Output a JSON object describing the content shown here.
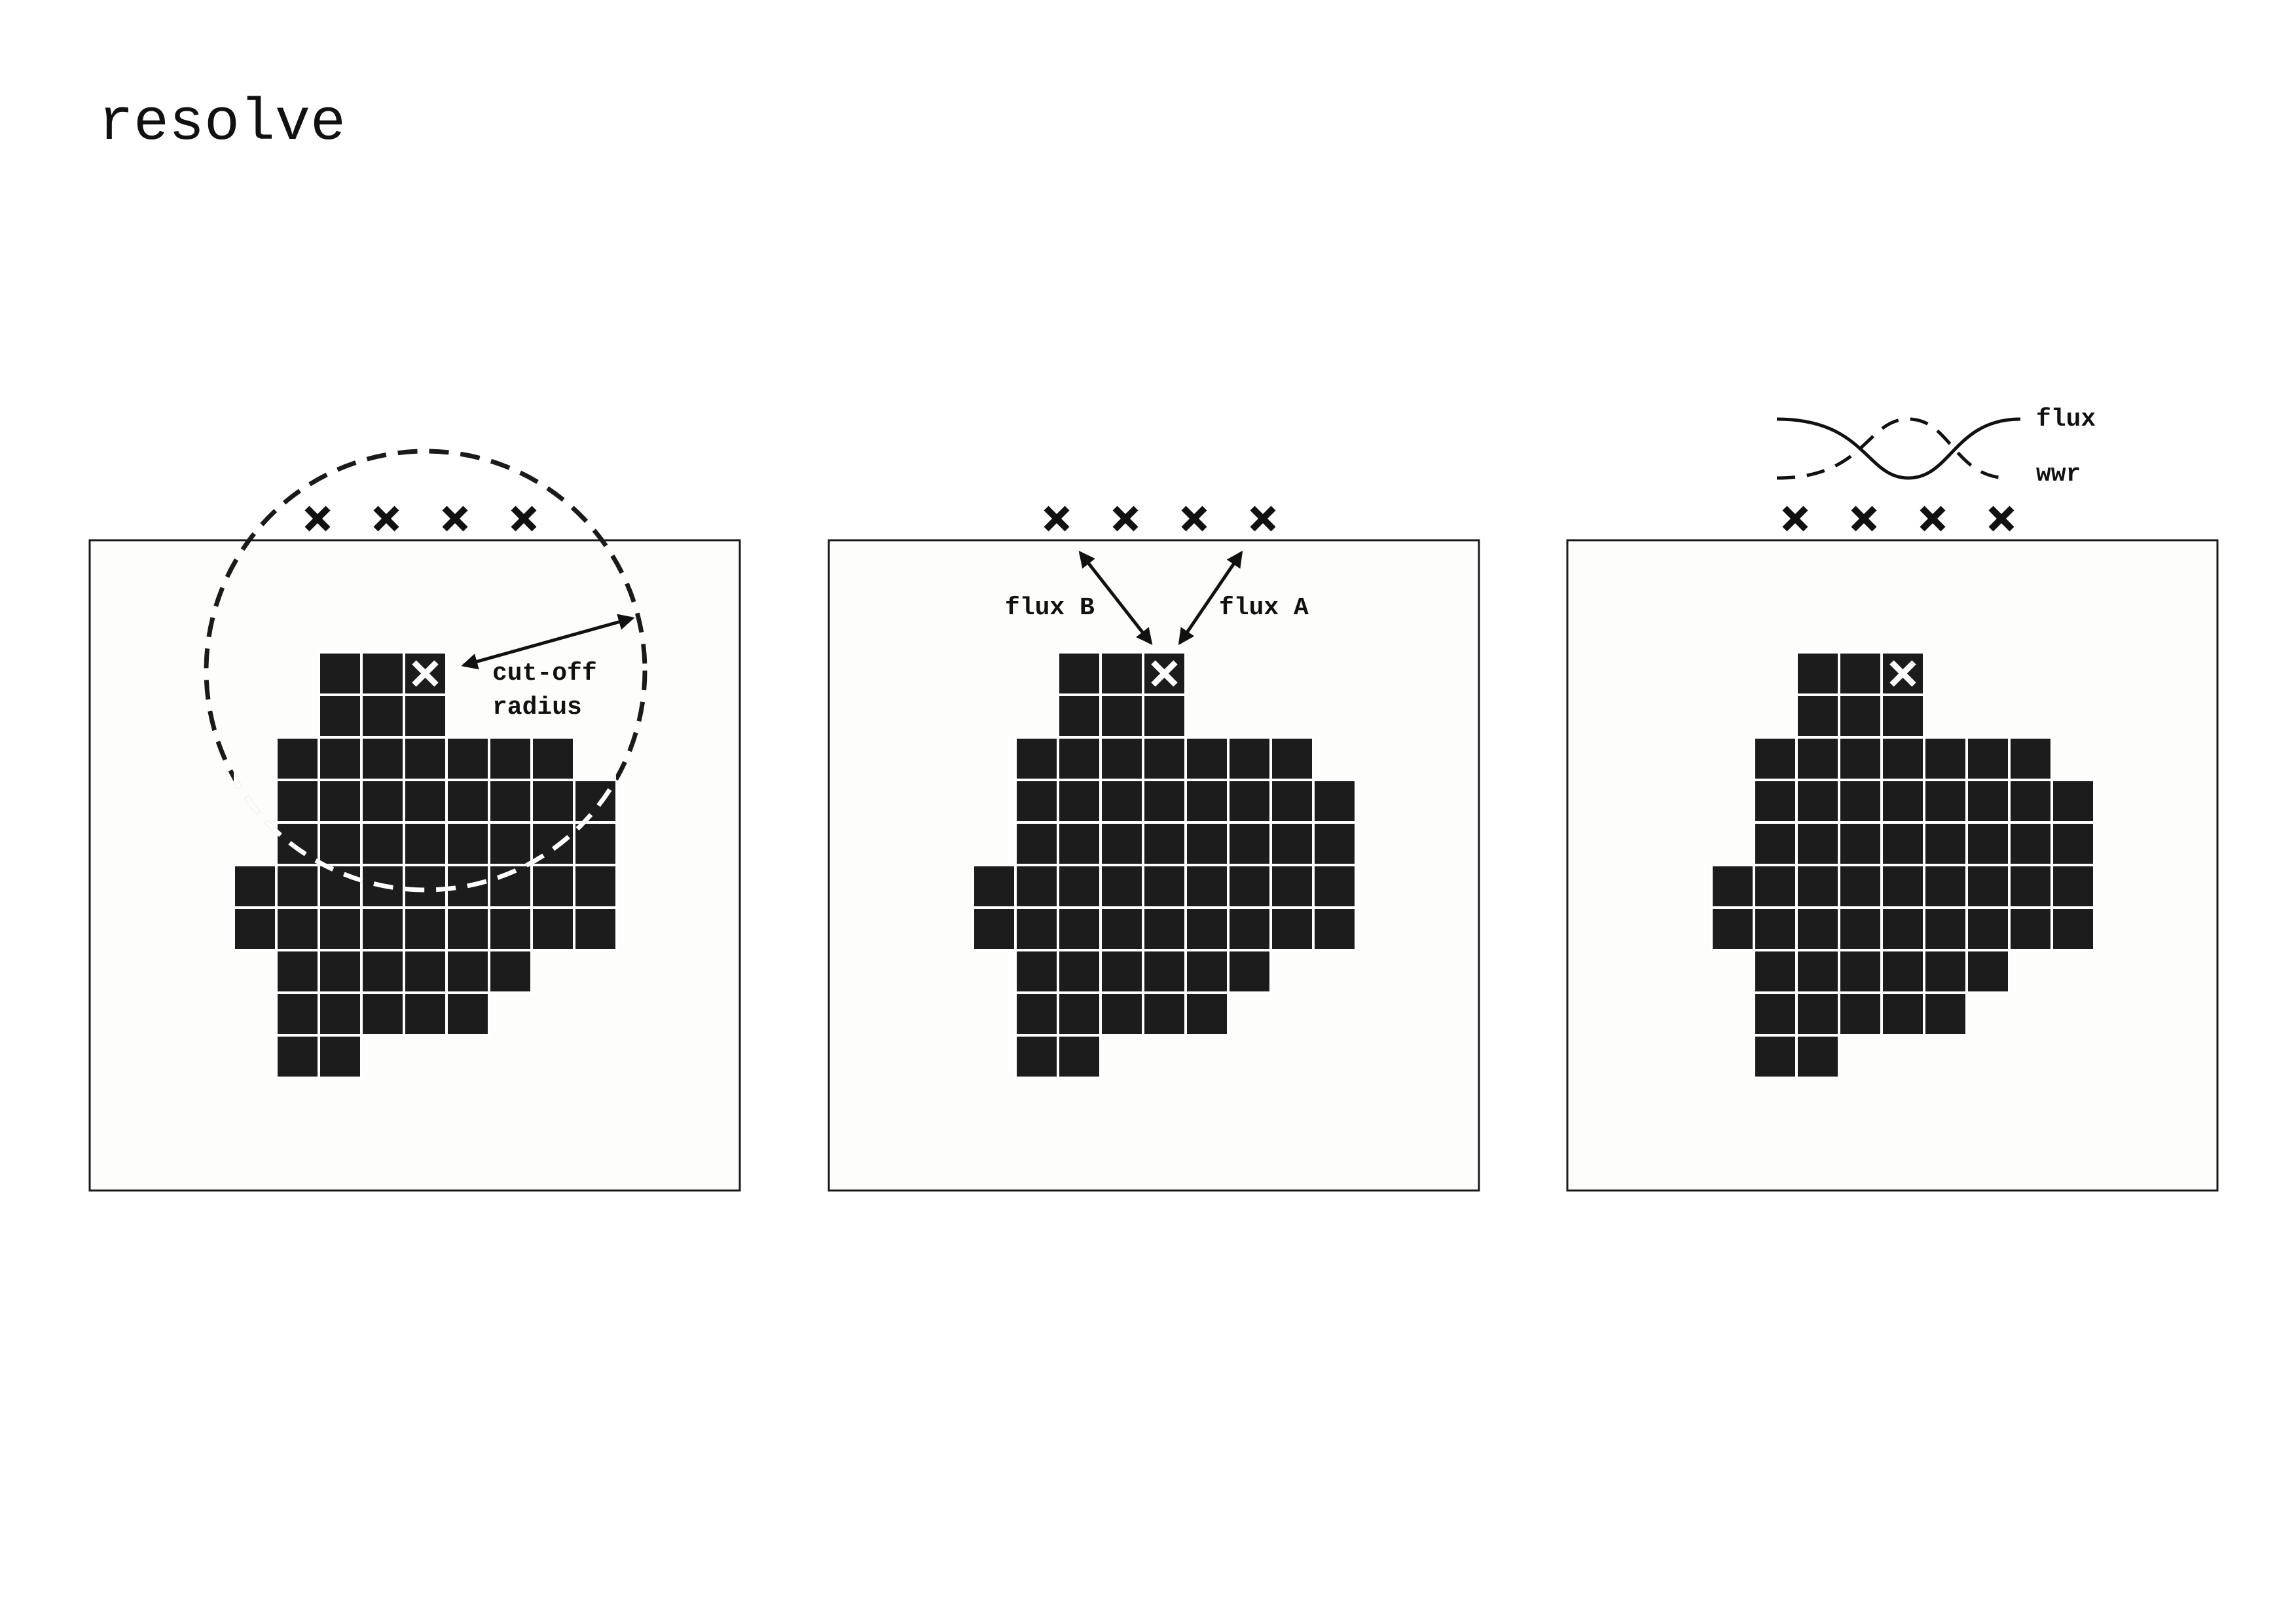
{
  "page": {
    "title": "resolve"
  },
  "colors": {
    "background": "#ffffff",
    "ink": "#1c1c1c",
    "grid_line": "#ffffff",
    "panel_fill": "#fdfdfb"
  },
  "icons": {
    "sensor": "cross-mark-icon",
    "selected_cell": "white-cross-icon"
  },
  "panels": [
    {
      "name": "cut-off-radius-panel",
      "labels": {
        "cutoff_line1": "cut-off",
        "cutoff_line2": "radius"
      }
    },
    {
      "name": "flux-direction-panel",
      "labels": {
        "flux_b": "flux B",
        "flux_a": "flux A"
      }
    },
    {
      "name": "flux-wwr-panel",
      "legend": {
        "flux": "flux",
        "wwr": "wwr"
      }
    }
  ],
  "grid": {
    "rows": [
      {
        "start": 2,
        "count": 3
      },
      {
        "start": 2,
        "count": 3
      },
      {
        "start": 1,
        "count": 7
      },
      {
        "start": 1,
        "count": 8
      },
      {
        "start": 1,
        "count": 8
      },
      {
        "start": 0,
        "count": 9
      },
      {
        "start": 0,
        "count": 9
      },
      {
        "start": 1,
        "count": 6
      },
      {
        "start": 1,
        "count": 5
      },
      {
        "start": 1,
        "count": 2
      }
    ],
    "selected": {
      "row": 0,
      "col": 4
    },
    "sensor_count": 4
  }
}
